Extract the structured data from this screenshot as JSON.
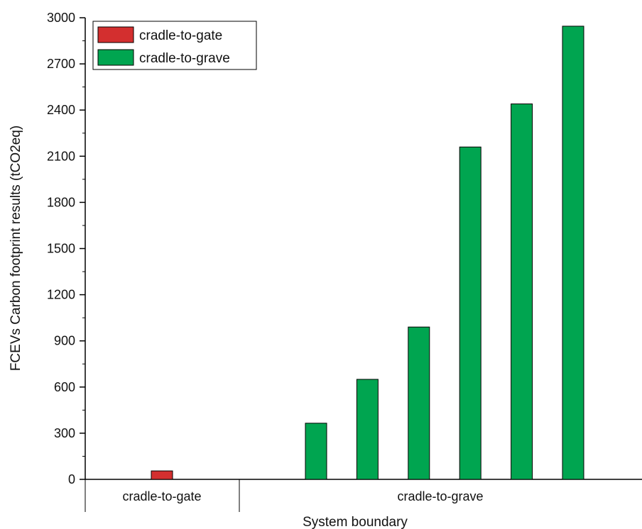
{
  "chart_data": {
    "type": "bar",
    "title": "",
    "xlabel": "System boundary",
    "ylabel": "FCEVs Carbon footprint results (tCO2eq)",
    "ylim": [
      0,
      3000
    ],
    "yticks": [
      0,
      300,
      600,
      900,
      1200,
      1500,
      1800,
      2100,
      2400,
      2700,
      3000
    ],
    "groups": [
      "cradle-to-gate",
      "cradle-to-grave"
    ],
    "series": [
      {
        "name": "cradle-to-gate",
        "color": "#d32f2f",
        "group": "cradle-to-gate",
        "values": [
          55
        ]
      },
      {
        "name": "cradle-to-grave",
        "color": "#00a550",
        "group": "cradle-to-grave",
        "values": [
          365,
          650,
          990,
          2160,
          2440,
          2945
        ]
      }
    ],
    "legend_position": "top-left",
    "grid": false
  }
}
